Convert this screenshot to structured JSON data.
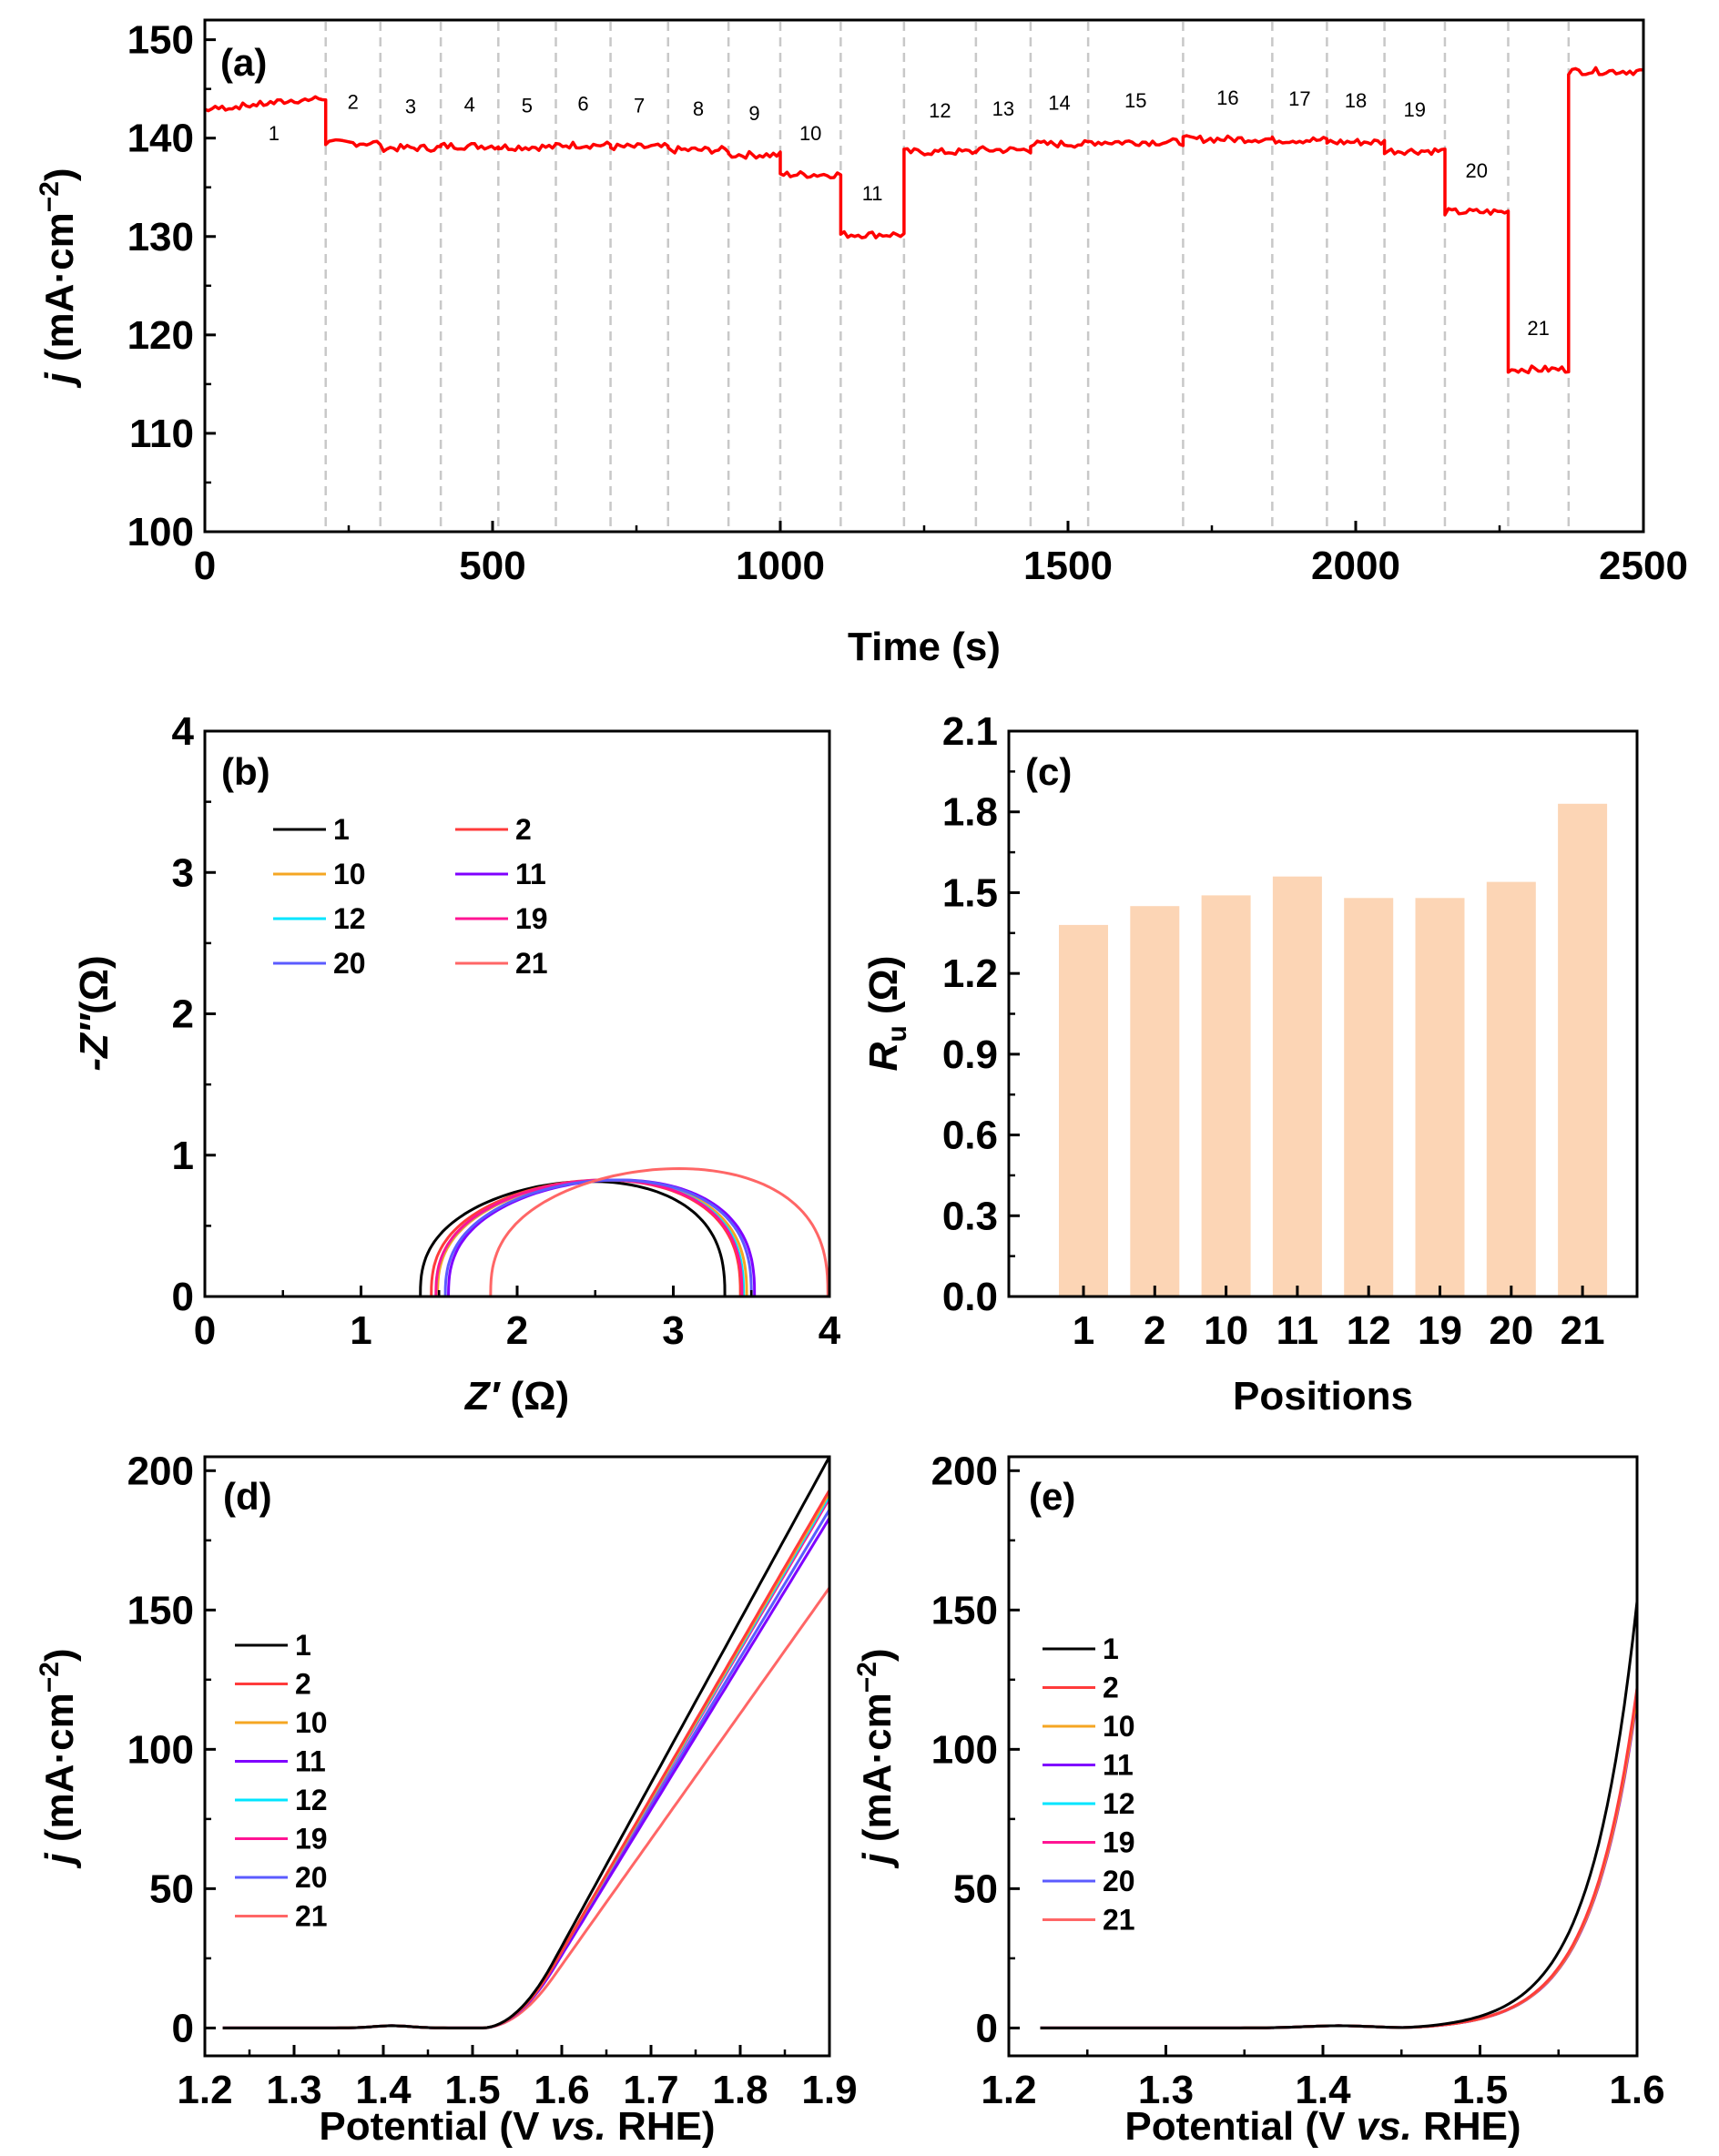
{
  "figure": {
    "colors": {
      "current_trace": "#ff0000",
      "bar_fill": "#fcd5b5",
      "divider": "#c8c8c8",
      "axis": "#000000",
      "series": {
        "1": "#000000",
        "2": "#ff3b3b",
        "10": "#f5a623",
        "11": "#7f00ff",
        "12": "#00e5ff",
        "19": "#ff1493",
        "20": "#5b5bff",
        "21": "#ff6666"
      }
    }
  },
  "chart_data": [
    {
      "id": "a",
      "panel_label": "(a)",
      "type": "line",
      "xlabel": "Time (s)",
      "ylabel_italic": "j",
      "ylabel_units": " (mA·cm",
      "ylabel_sup": "−2",
      "ylabel_close": ")",
      "xlim": [
        0,
        2500
      ],
      "ylim": [
        100,
        152
      ],
      "xticks": [
        0,
        500,
        1000,
        1500,
        2000,
        2500
      ],
      "yticks": [
        100,
        110,
        120,
        130,
        140,
        150
      ],
      "segments": [
        {
          "label": "1",
          "start": 0,
          "end": 210,
          "value": 143.5
        },
        {
          "label": "2",
          "start": 210,
          "end": 305,
          "value": 139.5
        },
        {
          "label": "3",
          "start": 305,
          "end": 410,
          "value": 139.0
        },
        {
          "label": "4",
          "start": 410,
          "end": 510,
          "value": 139.2
        },
        {
          "label": "5",
          "start": 510,
          "end": 610,
          "value": 139.1
        },
        {
          "label": "6",
          "start": 610,
          "end": 705,
          "value": 139.3
        },
        {
          "label": "7",
          "start": 705,
          "end": 805,
          "value": 139.1
        },
        {
          "label": "8",
          "start": 805,
          "end": 910,
          "value": 138.8
        },
        {
          "label": "9",
          "start": 910,
          "end": 1000,
          "value": 138.3
        },
        {
          "label": "10",
          "start": 1000,
          "end": 1105,
          "value": 136.3
        },
        {
          "label": "11",
          "start": 1105,
          "end": 1215,
          "value": 130.2
        },
        {
          "label": "12",
          "start": 1215,
          "end": 1340,
          "value": 138.6
        },
        {
          "label": "13",
          "start": 1340,
          "end": 1435,
          "value": 138.8
        },
        {
          "label": "14",
          "start": 1435,
          "end": 1535,
          "value": 139.4
        },
        {
          "label": "15",
          "start": 1535,
          "end": 1700,
          "value": 139.6
        },
        {
          "label": "16",
          "start": 1700,
          "end": 1855,
          "value": 139.9
        },
        {
          "label": "17",
          "start": 1855,
          "end": 1950,
          "value": 139.8
        },
        {
          "label": "18",
          "start": 1950,
          "end": 2050,
          "value": 139.6
        },
        {
          "label": "19",
          "start": 2050,
          "end": 2155,
          "value": 138.7
        },
        {
          "label": "20",
          "start": 2155,
          "end": 2265,
          "value": 132.5
        },
        {
          "label": "21",
          "start": 2265,
          "end": 2370,
          "value": 116.5
        },
        {
          "label": "",
          "start": 2370,
          "end": 2500,
          "value": 146.8
        }
      ]
    },
    {
      "id": "b",
      "panel_label": "(b)",
      "type": "scatter",
      "xlabel_italic": "Z′",
      "xlabel_units": " (Ω)",
      "ylabel_italic": "-Z″",
      "ylabel_units": "(Ω)",
      "xlim": [
        0,
        4
      ],
      "ylim": [
        0,
        4
      ],
      "xticks": [
        0,
        1,
        2,
        3,
        4
      ],
      "yticks": [
        0,
        1,
        2,
        3,
        4
      ],
      "series": [
        {
          "name": "1",
          "ru": 1.38,
          "rend": 3.33,
          "hmax": 0.81
        },
        {
          "name": "2",
          "ru": 1.45,
          "rend": 3.43,
          "hmax": 0.82
        },
        {
          "name": "10",
          "ru": 1.49,
          "rend": 3.47,
          "hmax": 0.82
        },
        {
          "name": "11",
          "ru": 1.56,
          "rend": 3.52,
          "hmax": 0.82
        },
        {
          "name": "12",
          "ru": 1.48,
          "rend": 3.45,
          "hmax": 0.82
        },
        {
          "name": "19",
          "ru": 1.48,
          "rend": 3.44,
          "hmax": 0.82
        },
        {
          "name": "20",
          "ru": 1.54,
          "rend": 3.5,
          "hmax": 0.82
        },
        {
          "name": "21",
          "ru": 1.83,
          "rend": 3.99,
          "hmax": 0.9
        }
      ]
    },
    {
      "id": "c",
      "panel_label": "(c)",
      "type": "bar",
      "xlabel": "Positions",
      "ylabel_italic": "R",
      "ylabel_sub": "u",
      "ylabel_units": " (Ω)",
      "ylim": [
        0,
        2.1
      ],
      "yticks": [
        "0.0",
        "0.3",
        "0.6",
        "0.9",
        "1.2",
        "1.5",
        "1.8",
        "2.1"
      ],
      "categories": [
        "1",
        "2",
        "10",
        "11",
        "12",
        "19",
        "20",
        "21"
      ],
      "values": [
        1.38,
        1.45,
        1.49,
        1.56,
        1.48,
        1.48,
        1.54,
        1.83
      ]
    },
    {
      "id": "d",
      "panel_label": "(d)",
      "type": "line",
      "xlabel_pre": "Potential (V ",
      "xlabel_italic": "vs.",
      "xlabel_post": " RHE)",
      "ylabel_italic": "j",
      "ylabel_units": " (mA·cm",
      "ylabel_sup": "−2",
      "ylabel_close": ")",
      "xlim": [
        1.2,
        1.9
      ],
      "ylim": [
        -10,
        205
      ],
      "xticks": [
        "1.2",
        "1.3",
        "1.4",
        "1.5",
        "1.6",
        "1.7",
        "1.8",
        "1.9"
      ],
      "yticks": [
        0,
        50,
        100,
        150,
        200
      ],
      "series": [
        {
          "name": "1",
          "end_value": 205
        },
        {
          "name": "2",
          "end_value": 193
        },
        {
          "name": "10",
          "end_value": 192
        },
        {
          "name": "11",
          "end_value": 183
        },
        {
          "name": "12",
          "end_value": 191
        },
        {
          "name": "19",
          "end_value": 190
        },
        {
          "name": "20",
          "end_value": 186
        },
        {
          "name": "21",
          "end_value": 158
        }
      ]
    },
    {
      "id": "e",
      "panel_label": "(e)",
      "type": "line",
      "xlabel_pre": "Potential (V ",
      "xlabel_italic": "vs.",
      "xlabel_post": " RHE)",
      "ylabel_italic": "j",
      "ylabel_units": " (mA·cm",
      "ylabel_sup": "−2",
      "ylabel_close": ")",
      "xlim": [
        1.2,
        1.6
      ],
      "ylim": [
        -10,
        205
      ],
      "xticks": [
        "1.2",
        "1.3",
        "1.4",
        "1.5",
        "1.6"
      ],
      "yticks": [
        0,
        50,
        100,
        150,
        200
      ],
      "series": [
        {
          "name": "1",
          "end_value": 153
        },
        {
          "name": "2",
          "end_value": 122
        },
        {
          "name": "10",
          "end_value": 120
        },
        {
          "name": "11",
          "end_value": 119
        },
        {
          "name": "12",
          "end_value": 121
        },
        {
          "name": "19",
          "end_value": 120
        },
        {
          "name": "20",
          "end_value": 119
        },
        {
          "name": "21",
          "end_value": 118
        }
      ]
    }
  ]
}
